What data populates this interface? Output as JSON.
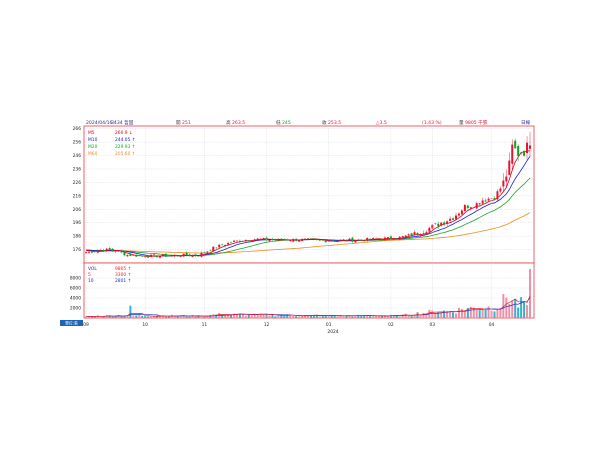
{
  "header": {
    "date": "2024/04/16",
    "stock": "3434 哲固",
    "open_label": "開",
    "open": "251",
    "high_label": "高",
    "high": "263.5",
    "low_label": "低",
    "low": "245",
    "close_label": "收",
    "close": "253.5",
    "change": "△3.5",
    "change_pct": "(1.43 %)",
    "volume_label": "量",
    "volume": "9805 千張",
    "period": "日線"
  },
  "colors": {
    "up": "#e8132b",
    "down": "#10a020",
    "ma5": "#d8001e",
    "ma10": "#1a22c8",
    "ma20": "#1aa428",
    "ma60": "#f08c1e",
    "vol_up": "#f090a8",
    "vol_down": "#38b0c8",
    "vol5": "#e8202c",
    "vol10": "#2030c0",
    "frame": "#e83c44",
    "grid": "#c8cce0"
  },
  "legend_price": [
    {
      "name": "M5",
      "value": "260.9 ↓"
    },
    {
      "name": "M10",
      "value": "244.05 ↑"
    },
    {
      "name": "M20",
      "value": "229.93 ↑"
    },
    {
      "name": "M60",
      "value": "205.60 ↑"
    }
  ],
  "legend_volume": [
    {
      "name": "VOL",
      "value": "9805 ↑"
    },
    {
      "name": "5",
      "value": "3300 ↑"
    },
    {
      "name": "10",
      "value": "2801 ↑"
    }
  ],
  "unit_badge": "單位:張",
  "chart_data": {
    "type": "candlestick",
    "price_axis": {
      "ticks": [
        176,
        186,
        196,
        206,
        216,
        226,
        236,
        246,
        256,
        266
      ],
      "range": [
        166,
        268
      ]
    },
    "volume_axis": {
      "ticks": [
        2000,
        4000,
        6000,
        8000
      ],
      "range": [
        0,
        10200
      ]
    },
    "x_tick_labels": [
      "09",
      "10",
      "11",
      "12",
      "01",
      "02",
      "03",
      "04"
    ],
    "year_label": "2024",
    "last_candle": {
      "open": 251,
      "high": 263.5,
      "low": 245,
      "close": 253.5,
      "volume": 9805
    },
    "price_anchors": [
      [
        0,
        174
      ],
      [
        6,
        176
      ],
      [
        10,
        175
      ],
      [
        14,
        172
      ],
      [
        20,
        171
      ],
      [
        28,
        171.5
      ],
      [
        38,
        172
      ],
      [
        44,
        178
      ],
      [
        50,
        182
      ],
      [
        56,
        184
      ],
      [
        64,
        183
      ],
      [
        72,
        183.5
      ],
      [
        80,
        182.5
      ],
      [
        90,
        183
      ],
      [
        100,
        184
      ],
      [
        106,
        185
      ],
      [
        112,
        188
      ],
      [
        118,
        194
      ],
      [
        124,
        200
      ],
      [
        128,
        208
      ],
      [
        132,
        210
      ],
      [
        134,
        213
      ],
      [
        138,
        215
      ],
      [
        141,
        225
      ],
      [
        142,
        232
      ],
      [
        143,
        238
      ],
      [
        144,
        252
      ],
      [
        146,
        248
      ],
      [
        148,
        250
      ],
      [
        150,
        253.5
      ]
    ],
    "volume_anchors": [
      [
        0,
        300
      ],
      [
        14,
        600
      ],
      [
        15,
        1800
      ],
      [
        16,
        500
      ],
      [
        40,
        400
      ],
      [
        44,
        750
      ],
      [
        80,
        450
      ],
      [
        106,
        450
      ],
      [
        112,
        900
      ],
      [
        118,
        1300
      ],
      [
        124,
        1400
      ],
      [
        128,
        1900
      ],
      [
        132,
        2000
      ],
      [
        136,
        2100
      ],
      [
        140,
        2500
      ],
      [
        142,
        4300
      ],
      [
        144,
        3600
      ],
      [
        146,
        2600
      ],
      [
        148,
        3200
      ],
      [
        149,
        1800
      ],
      [
        150,
        9805
      ]
    ],
    "ma_values_last": {
      "M5": 260.9,
      "M10": 244.05,
      "M20": 229.93,
      "M60": 205.6
    },
    "vol_ma_last": {
      "5": 3300,
      "10": 2801
    }
  }
}
